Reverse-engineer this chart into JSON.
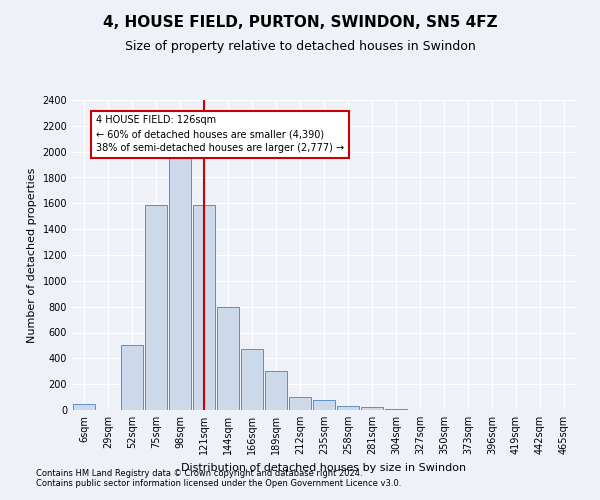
{
  "title": "4, HOUSE FIELD, PURTON, SWINDON, SN5 4FZ",
  "subtitle": "Size of property relative to detached houses in Swindon",
  "xlabel": "Distribution of detached houses by size in Swindon",
  "ylabel": "Number of detached properties",
  "categories": [
    "6sqm",
    "29sqm",
    "52sqm",
    "75sqm",
    "98sqm",
    "121sqm",
    "144sqm",
    "166sqm",
    "189sqm",
    "212sqm",
    "235sqm",
    "258sqm",
    "281sqm",
    "304sqm",
    "327sqm",
    "350sqm",
    "373sqm",
    "396sqm",
    "419sqm",
    "442sqm",
    "465sqm"
  ],
  "values": [
    50,
    0,
    500,
    1590,
    1950,
    1590,
    800,
    470,
    300,
    100,
    80,
    30,
    20,
    10,
    0,
    0,
    0,
    0,
    0,
    0,
    0
  ],
  "bar_color": "#ccd9ea",
  "bar_edge_color": "#5b8fc9",
  "vline_x_index": 5,
  "vline_color": "#cc0000",
  "annotation_text": "4 HOUSE FIELD: 126sqm\n← 60% of detached houses are smaller (4,390)\n38% of semi-detached houses are larger (2,777) →",
  "annotation_box_color": "#ffffff",
  "annotation_box_edge_color": "#cc0000",
  "ylim": [
    0,
    2400
  ],
  "yticks": [
    0,
    200,
    400,
    600,
    800,
    1000,
    1200,
    1400,
    1600,
    1800,
    2000,
    2200,
    2400
  ],
  "footer1": "Contains HM Land Registry data © Crown copyright and database right 2024.",
  "footer2": "Contains public sector information licensed under the Open Government Licence v3.0.",
  "bg_color": "#eef2f8",
  "plot_bg_color": "#eef2f8",
  "title_fontsize": 11,
  "subtitle_fontsize": 9,
  "tick_fontsize": 7,
  "ylabel_fontsize": 8,
  "xlabel_fontsize": 8,
  "footer_fontsize": 6
}
